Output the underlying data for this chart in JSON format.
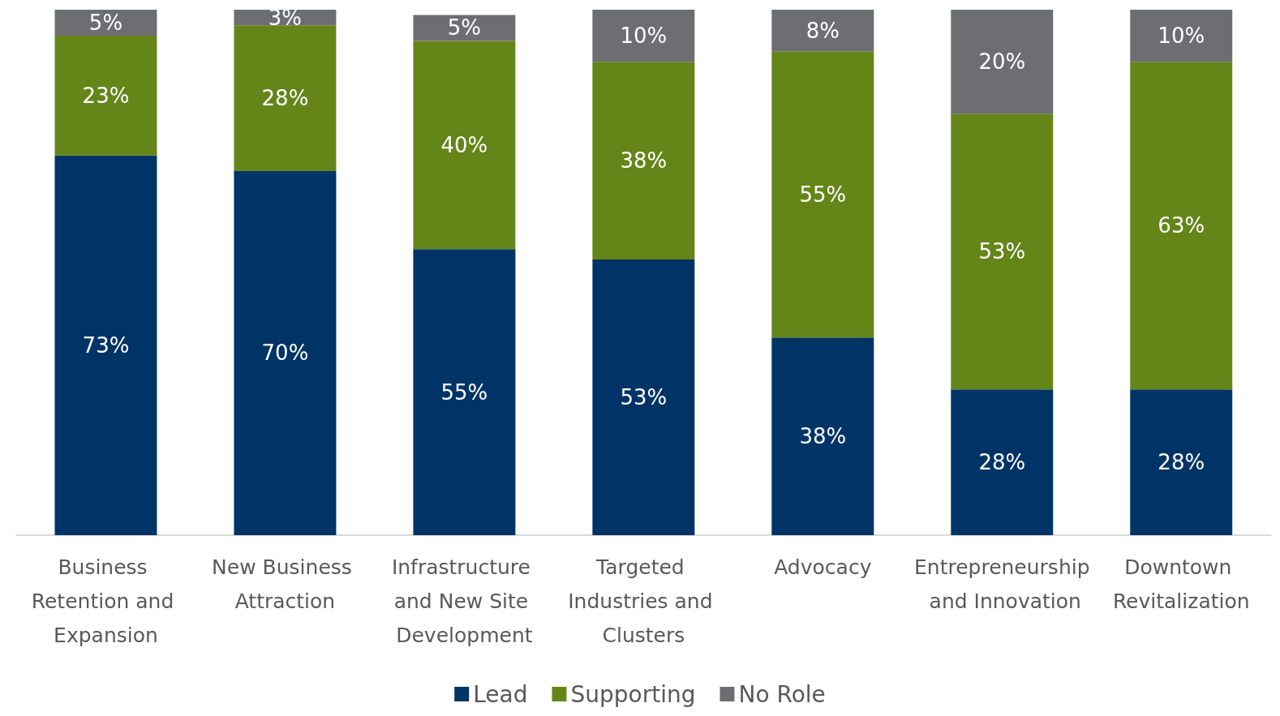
{
  "chart_data": {
    "type": "bar",
    "stacked": true,
    "categories": [
      "Business Retention and Expansion",
      "New Business Attraction",
      "Infrastructure and New Site Development",
      "Targeted Industries and Clusters",
      "Advocacy",
      "Entrepreneurship and Innovation",
      "Downtown Revitalization"
    ],
    "series": [
      {
        "name": "Lead",
        "color": "#003366",
        "values": [
          73,
          70,
          55,
          53,
          38,
          28,
          28
        ],
        "value_labels": [
          "73%",
          "70%",
          "55%",
          "53%",
          "38%",
          "28%",
          "28%"
        ]
      },
      {
        "name": "Supporting",
        "color": "#648518",
        "values": [
          23,
          28,
          40,
          38,
          55,
          53,
          63
        ],
        "value_labels": [
          "23%",
          "28%",
          "40%",
          "38%",
          "55%",
          "53%",
          "63%"
        ]
      },
      {
        "name": "No Role",
        "color": "#6d6e71",
        "values": [
          5,
          3,
          5,
          10,
          8,
          20,
          10
        ],
        "value_labels": [
          "5%",
          "3%",
          "5%",
          "10%",
          "8%",
          "20%",
          "10%"
        ]
      }
    ],
    "legend": "bottom"
  }
}
